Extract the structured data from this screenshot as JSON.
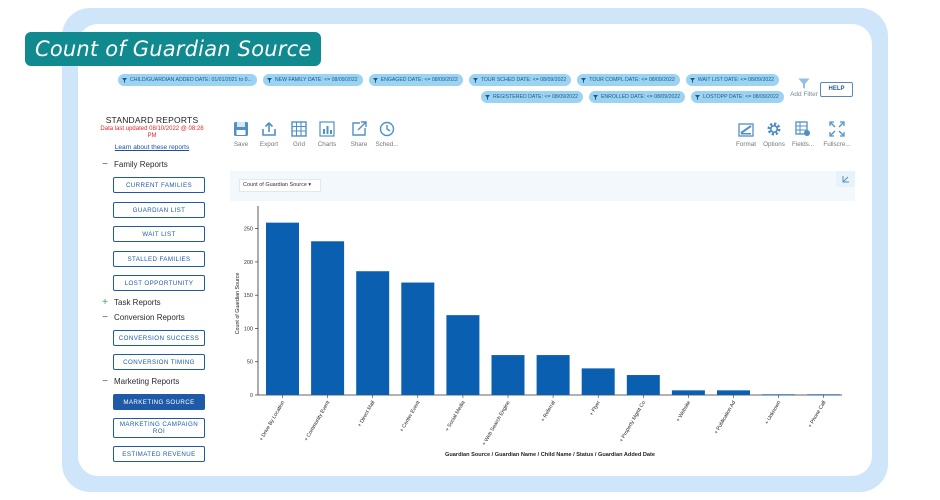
{
  "badge_title": "Count of Guardian Source",
  "filters_row1": [
    "CHILD/GUARDIAN ADDED DATE: 01/01/2021 to 0...",
    "NEW FAMILY DATE: <= 08/09/2022",
    "ENGAGED DATE: <= 08/09/2022",
    "TOUR SCHED DATE: <= 08/09/2022",
    "TOUR COMPL DATE: <= 08/09/2022",
    "WAIT LIST DATE: <= 08/09/2022"
  ],
  "filters_row2": [
    "REGISTERED DATE: <= 08/09/2022",
    "ENROLLED DATE: <= 08/09/2022",
    "LOSTOPP DATE: <= 08/09/2022"
  ],
  "add_filter_label": "Add Filter",
  "help_label": "HELP",
  "sidebar": {
    "title": "STANDARD REPORTS",
    "updated_line1": "Data last updated 08/10/2022 @ 08:28",
    "updated_line2": "PM",
    "learn_link": "Learn about these reports",
    "family_reports": "Family Reports",
    "task_reports": "Task Reports",
    "conversion_reports": "Conversion Reports",
    "marketing_reports": "Marketing Reports",
    "family_items": [
      "CURRENT FAMILIES",
      "GUARDIAN LIST",
      "WAIT LIST",
      "STALLED FAMILIES",
      "LOST OPPORTUNITY"
    ],
    "conversion_items": [
      "CONVERSION SUCCESS",
      "CONVERSION TIMING"
    ],
    "marketing_items": [
      "MARKETING SOURCE",
      "MARKETING CAMPAIGN ROI",
      "ESTIMATED REVENUE"
    ]
  },
  "toolbar": {
    "save": "Save",
    "export": "Export",
    "grid": "Grid",
    "charts": "Charts",
    "share": "Share",
    "sched": "Sched...",
    "format": "Format",
    "options": "Options",
    "fields": "Fields...",
    "fullscreen": "Fullscre..."
  },
  "colors": {
    "accent": "#1e5aa8",
    "bar": "#0b5fb0",
    "badge": "#108a8f",
    "chip": "#9dd3f2"
  },
  "chart_data": {
    "type": "bar",
    "selector_label": "Count of Guardian Source",
    "ylabel": "Count of Guardian Source",
    "xlabel": "Guardian Source / Guardian Name / Child Name / Status / Guardian Added Date",
    "categories": [
      "+ Drive By Location",
      "+ Community Event",
      "+ Direct Mail",
      "+ Center Event",
      "+ Social Media",
      "+ Web Search Engine",
      "+ Referral",
      "+ Flyer",
      "+ Property Mgmt Co",
      "+ Website",
      "+ Publication Ad",
      "+ Unknown",
      "+ Phone Call"
    ],
    "values": [
      259,
      231,
      186,
      169,
      120,
      60,
      60,
      40,
      30,
      7,
      7,
      1,
      1
    ],
    "ylim": [
      0,
      275
    ],
    "yticks": [
      0,
      50,
      100,
      150,
      200,
      250
    ],
    "grid": false,
    "legend": "none"
  }
}
